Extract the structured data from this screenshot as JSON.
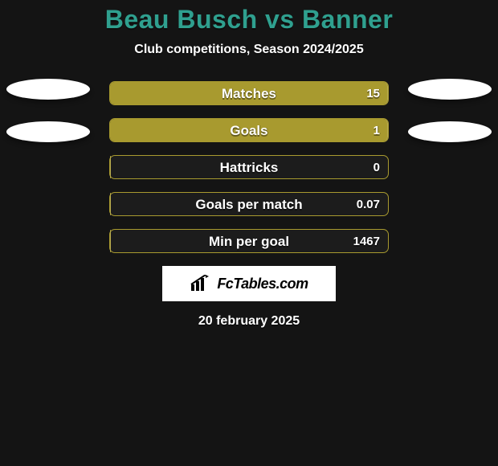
{
  "background_color": "#141414",
  "title": {
    "text": "Beau Busch vs Banner",
    "color": "#2fa08f",
    "fontsize": 32
  },
  "subtitle": {
    "text": "Club competitions, Season 2024/2025",
    "color": "#ffffff",
    "fontsize": 16
  },
  "ellipses": {
    "color": "#ffffff",
    "width": 104,
    "height": 26
  },
  "bars": {
    "track_color": "#1c1c1c",
    "track_border": "#a89a2f",
    "fill_color": "#a89a2f",
    "label_color": "#ffffff",
    "value_color": "#ffffff",
    "label_fontsize": 17,
    "value_fontsize": 15,
    "rows": [
      {
        "label": "Matches",
        "value": "15",
        "fill_pct": 100
      },
      {
        "label": "Goals",
        "value": "1",
        "fill_pct": 100
      },
      {
        "label": "Hattricks",
        "value": "0",
        "fill_pct": 0
      },
      {
        "label": "Goals per match",
        "value": "0.07",
        "fill_pct": 0
      },
      {
        "label": "Min per goal",
        "value": "1467",
        "fill_pct": 0
      }
    ]
  },
  "logo": {
    "bg": "#ffffff",
    "text": "FcTables.com",
    "icon_color": "#000000"
  },
  "date": {
    "text": "20 february 2025",
    "color": "#ffffff",
    "fontsize": 16
  }
}
